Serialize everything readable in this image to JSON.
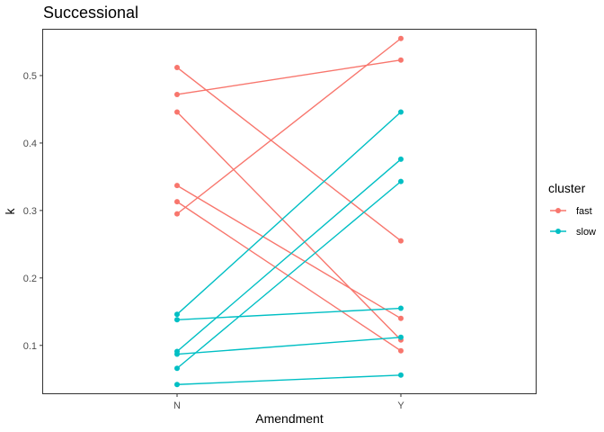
{
  "chart_data": {
    "type": "line",
    "title": "Successional",
    "xlabel": "Amendment",
    "ylabel": "k",
    "categories": [
      "N",
      "Y"
    ],
    "ylim": [
      0.029,
      0.568
    ],
    "yticks": [
      0.1,
      0.2,
      0.3,
      0.4,
      0.5
    ],
    "ytick_labels": [
      "0.1",
      "0.2",
      "0.3",
      "0.4",
      "0.5"
    ],
    "grid": false,
    "legend": {
      "title": "cluster",
      "placement": "right",
      "entries": [
        {
          "label": "fast",
          "color": "#F8766D"
        },
        {
          "label": "slow",
          "color": "#00BFC4"
        }
      ]
    },
    "series": [
      {
        "cluster": "fast",
        "values": [
          0.295,
          0.555
        ]
      },
      {
        "cluster": "fast",
        "values": [
          0.472,
          0.523
        ]
      },
      {
        "cluster": "fast",
        "values": [
          0.512,
          0.255
        ]
      },
      {
        "cluster": "fast",
        "values": [
          0.446,
          0.108
        ]
      },
      {
        "cluster": "fast",
        "values": [
          0.337,
          0.14
        ]
      },
      {
        "cluster": "fast",
        "values": [
          0.313,
          0.092
        ]
      },
      {
        "cluster": "slow",
        "values": [
          0.146,
          0.446
        ]
      },
      {
        "cluster": "slow",
        "values": [
          0.091,
          0.376
        ]
      },
      {
        "cluster": "slow",
        "values": [
          0.066,
          0.343
        ]
      },
      {
        "cluster": "slow",
        "values": [
          0.138,
          0.155
        ]
      },
      {
        "cluster": "slow",
        "values": [
          0.087,
          0.112
        ]
      },
      {
        "cluster": "slow",
        "values": [
          0.042,
          0.056
        ]
      }
    ],
    "colors": {
      "fast": "#F8766D",
      "slow": "#00BFC4"
    }
  }
}
